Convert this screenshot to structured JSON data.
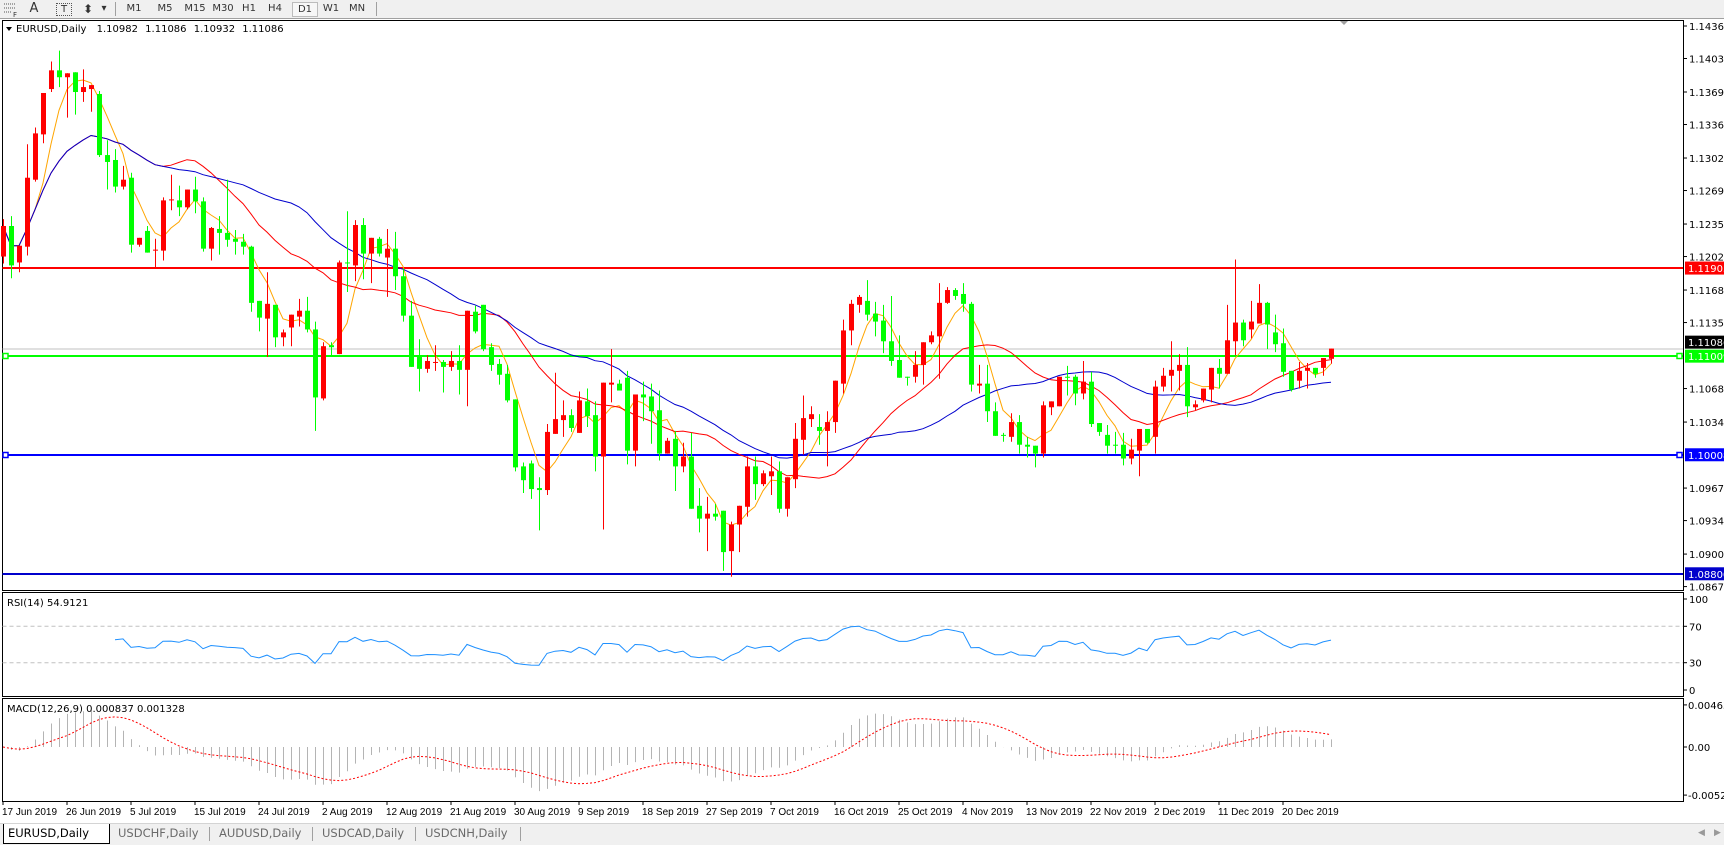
{
  "toolbar": {
    "tools": [
      {
        "name": "fibonacci-tool",
        "glyph": "F"
      },
      {
        "name": "text-tool",
        "glyph": "A"
      },
      {
        "name": "text-label-tool",
        "glyph": "T"
      },
      {
        "name": "arrows-tool",
        "glyph": "⬍"
      }
    ],
    "dropdown_glyph": "▾",
    "timeframes": [
      "M1",
      "M5",
      "M15",
      "M30",
      "H1",
      "H4",
      "D1",
      "W1",
      "MN"
    ],
    "active_timeframe": "D1"
  },
  "header": {
    "symbol": "EURUSD,Daily",
    "open": "1.10982",
    "high": "1.11086",
    "low": "1.10932",
    "close": "1.11086"
  },
  "colors": {
    "bull": "#ff0000",
    "bear": "#00ff00",
    "ma_fast": "#ffa500",
    "ma_mid": "#ff0000",
    "ma_slow": "#0000cd",
    "rsi": "#1e90ff",
    "macd_hist": "#b4b4b4",
    "macd_signal": "#ff0000",
    "bid_line": "#c0c0c0"
  },
  "chart_data": {
    "type": "candlestick",
    "symbol": "EURUSD",
    "timeframe": "Daily",
    "price_range": [
      1.08638,
      1.14421
    ],
    "price_axis_labels": [
      "1.14360",
      "1.14030",
      "1.13690",
      "1.13360",
      "1.13020",
      "1.12690",
      "1.12350",
      "1.12020",
      "1.11680",
      "1.11350",
      "1.10680",
      "1.10340",
      "1.09670",
      "1.09340",
      "1.09000",
      "1.08670"
    ],
    "date_labels": [
      "17 Jun 2019",
      "26 Jun 2019",
      "5 Jul 2019",
      "15 Jul 2019",
      "24 Jul 2019",
      "2 Aug 2019",
      "12 Aug 2019",
      "21 Aug 2019",
      "30 Aug 2019",
      "9 Sep 2019",
      "18 Sep 2019",
      "27 Sep 2019",
      "7 Oct 2019",
      "16 Oct 2019",
      "25 Oct 2019",
      "4 Nov 2019",
      "13 Nov 2019",
      "22 Nov 2019",
      "2 Dec 2019",
      "11 Dec 2019",
      "20 Dec 2019"
    ],
    "bid": {
      "price": 1.11086,
      "label": "1.11086"
    },
    "horizontal_lines": [
      {
        "price": 1.11903,
        "label": "1.11903",
        "color": "#ff0000",
        "handles": false
      },
      {
        "price": 1.11009,
        "label": "1.11009",
        "color": "#00ff00",
        "handles": true
      },
      {
        "price": 1.10008,
        "label": "1.10008",
        "color": "#0000ff",
        "handles": true
      },
      {
        "price": 1.088,
        "label": "1.08800",
        "color": "#0000cc",
        "handles": false
      }
    ],
    "ohlc": [
      [
        1.1202,
        1.124,
        1.1195,
        1.1233
      ],
      [
        1.1233,
        1.1243,
        1.118,
        1.1193
      ],
      [
        1.1196,
        1.1213,
        1.1186,
        1.1213
      ],
      [
        1.1212,
        1.1316,
        1.1203,
        1.1282
      ],
      [
        1.128,
        1.1333,
        1.1278,
        1.1327
      ],
      [
        1.1326,
        1.1368,
        1.1317,
        1.1368
      ],
      [
        1.1372,
        1.14,
        1.1369,
        1.1391
      ],
      [
        1.1391,
        1.1411,
        1.1374,
        1.1384
      ],
      [
        1.1384,
        1.1388,
        1.1343,
        1.1388
      ],
      [
        1.1389,
        1.1389,
        1.1346,
        1.1369
      ],
      [
        1.1369,
        1.1392,
        1.1359,
        1.1374
      ],
      [
        1.1372,
        1.1376,
        1.1349,
        1.1376
      ],
      [
        1.1367,
        1.137,
        1.1303,
        1.1305
      ],
      [
        1.1305,
        1.132,
        1.127,
        1.1298
      ],
      [
        1.13,
        1.1311,
        1.1267,
        1.1273
      ],
      [
        1.1273,
        1.1294,
        1.127,
        1.128
      ],
      [
        1.1282,
        1.1287,
        1.1206,
        1.1214
      ],
      [
        1.1214,
        1.1221,
        1.1212,
        1.1221
      ],
      [
        1.1228,
        1.1233,
        1.1206,
        1.1206
      ],
      [
        1.1208,
        1.122,
        1.1191,
        1.1209
      ],
      [
        1.1208,
        1.1262,
        1.1198,
        1.1259
      ],
      [
        1.1259,
        1.1285,
        1.1249,
        1.126
      ],
      [
        1.1259,
        1.1274,
        1.1243,
        1.1252
      ],
      [
        1.1252,
        1.127,
        1.125,
        1.127
      ],
      [
        1.127,
        1.1283,
        1.1246,
        1.1258
      ],
      [
        1.1258,
        1.1262,
        1.1207,
        1.121
      ],
      [
        1.121,
        1.1232,
        1.1198,
        1.1231
      ],
      [
        1.123,
        1.1243,
        1.1204,
        1.1226
      ],
      [
        1.1226,
        1.128,
        1.1212,
        1.1219
      ],
      [
        1.122,
        1.1229,
        1.1204,
        1.1217
      ],
      [
        1.1217,
        1.1225,
        1.1204,
        1.1212
      ],
      [
        1.1212,
        1.1213,
        1.1146,
        1.1155
      ],
      [
        1.1157,
        1.1157,
        1.1126,
        1.114
      ],
      [
        1.1139,
        1.1186,
        1.11,
        1.1154
      ],
      [
        1.1153,
        1.1153,
        1.111,
        1.112
      ],
      [
        1.112,
        1.1128,
        1.1111,
        1.1125
      ],
      [
        1.113,
        1.1143,
        1.1111,
        1.1143
      ],
      [
        1.1141,
        1.1159,
        1.1131,
        1.1147
      ],
      [
        1.1147,
        1.1161,
        1.1125,
        1.1128
      ],
      [
        1.1128,
        1.1136,
        1.1025,
        1.1059
      ],
      [
        1.1058,
        1.1115,
        1.1056,
        1.1111
      ],
      [
        1.1112,
        1.1115,
        1.1102,
        1.111
      ],
      [
        1.1103,
        1.1198,
        1.1103,
        1.1196
      ],
      [
        1.1196,
        1.1248,
        1.1166,
        1.1195
      ],
      [
        1.1193,
        1.1239,
        1.1177,
        1.1234
      ],
      [
        1.1234,
        1.1241,
        1.1179,
        1.1205
      ],
      [
        1.1205,
        1.1221,
        1.1175,
        1.1221
      ],
      [
        1.122,
        1.1222,
        1.1202,
        1.1205
      ],
      [
        1.1201,
        1.123,
        1.1161,
        1.121
      ],
      [
        1.121,
        1.1227,
        1.1168,
        1.1182
      ],
      [
        1.1182,
        1.119,
        1.1136,
        1.1142
      ],
      [
        1.1142,
        1.1157,
        1.109,
        1.109
      ],
      [
        1.11,
        1.1118,
        1.1065,
        1.1088
      ],
      [
        1.1088,
        1.1102,
        1.1084,
        1.1096
      ],
      [
        1.1094,
        1.1112,
        1.1086,
        1.1095
      ],
      [
        1.1095,
        1.1097,
        1.1064,
        1.109
      ],
      [
        1.109,
        1.1106,
        1.1086,
        1.1096
      ],
      [
        1.1096,
        1.1112,
        1.1062,
        1.1087
      ],
      [
        1.1087,
        1.1147,
        1.105,
        1.1147
      ],
      [
        1.1146,
        1.1152,
        1.1124,
        1.1126
      ],
      [
        1.1153,
        1.1153,
        1.1106,
        1.1108
      ],
      [
        1.111,
        1.1114,
        1.1086,
        1.1092
      ],
      [
        1.1093,
        1.1098,
        1.1072,
        1.1082
      ],
      [
        1.1083,
        1.1092,
        1.1054,
        1.1056
      ],
      [
        1.1057,
        1.1057,
        1.0984,
        1.0988
      ],
      [
        1.0989,
        1.0993,
        1.0962,
        1.0975
      ],
      [
        1.0992,
        1.0995,
        1.0956,
        1.0966
      ],
      [
        1.0967,
        1.0978,
        1.0924,
        1.0965
      ],
      [
        1.0965,
        1.1032,
        1.096,
        1.1024
      ],
      [
        1.1022,
        1.1084,
        1.1022,
        1.1037
      ],
      [
        1.1036,
        1.1056,
        1.1019,
        1.1041
      ],
      [
        1.1041,
        1.1047,
        1.1024,
        1.1028
      ],
      [
        1.1023,
        1.1065,
        1.1023,
        1.1056
      ],
      [
        1.1055,
        1.1068,
        1.1029,
        1.104
      ],
      [
        1.1041,
        1.1055,
        1.0984,
        1.0999
      ],
      [
        1.0999,
        1.1074,
        1.0925,
        1.1074
      ],
      [
        1.1072,
        1.1108,
        1.1054,
        1.1074
      ],
      [
        1.1073,
        1.1077,
        1.1066,
        1.1066
      ],
      [
        1.1079,
        1.1086,
        1.0991,
        1.1005
      ],
      [
        1.1005,
        1.1062,
        1.0989,
        1.1062
      ],
      [
        1.1062,
        1.1075,
        1.1035,
        1.1059
      ],
      [
        1.106,
        1.1073,
        1.1012,
        1.1045
      ],
      [
        1.1046,
        1.1066,
        1.0995,
        1.1002
      ],
      [
        1.1002,
        1.1018,
        1.1002,
        1.1015
      ],
      [
        1.1017,
        1.1025,
        1.0964,
        1.0989
      ],
      [
        1.0989,
        1.1013,
        1.0983,
        1.0999
      ],
      [
        1.0999,
        1.1023,
        1.0946,
        1.0946
      ],
      [
        1.0949,
        1.0967,
        1.0922,
        1.0936
      ],
      [
        1.0936,
        1.0958,
        1.0903,
        1.0941
      ],
      [
        1.0941,
        1.0951,
        1.0934,
        1.0938
      ],
      [
        1.0944,
        1.0944,
        1.0883,
        1.0902
      ],
      [
        1.0903,
        1.0933,
        1.0877,
        1.093
      ],
      [
        1.093,
        1.0949,
        1.0902,
        1.0949
      ],
      [
        1.0948,
        1.0999,
        1.0938,
        1.0989
      ],
      [
        1.0989,
        1.0999,
        1.0955,
        1.0971
      ],
      [
        1.0971,
        1.0985,
        1.0969,
        1.0982
      ],
      [
        1.0979,
        1.0999,
        1.096,
        1.0984
      ],
      [
        1.0984,
        1.0994,
        1.0942,
        1.0946
      ],
      [
        1.0946,
        1.0978,
        1.0938,
        1.0978
      ],
      [
        1.0976,
        1.1033,
        1.0967,
        1.1017
      ],
      [
        1.1016,
        1.1061,
        1.1001,
        1.1038
      ],
      [
        1.1037,
        1.105,
        1.1029,
        1.1042
      ],
      [
        1.1029,
        1.1042,
        1.1011,
        1.1025
      ],
      [
        1.1025,
        1.1045,
        1.0989,
        1.1034
      ],
      [
        1.1034,
        1.1076,
        1.1023,
        1.1076
      ],
      [
        1.1073,
        1.1138,
        1.1063,
        1.1127
      ],
      [
        1.1127,
        1.1158,
        1.1112,
        1.1154
      ],
      [
        1.1153,
        1.1163,
        1.1145,
        1.1161
      ],
      [
        1.1157,
        1.1178,
        1.1137,
        1.1143
      ],
      [
        1.1144,
        1.1156,
        1.1121,
        1.1136
      ],
      [
        1.1137,
        1.1153,
        1.1104,
        1.1116
      ],
      [
        1.1116,
        1.1162,
        1.1091,
        1.1096
      ],
      [
        1.1097,
        1.1122,
        1.1079,
        1.1079
      ],
      [
        1.108,
        1.108,
        1.1071,
        1.1079
      ],
      [
        1.108,
        1.1106,
        1.1074,
        1.1092
      ],
      [
        1.1092,
        1.1115,
        1.1072,
        1.1115
      ],
      [
        1.1115,
        1.1126,
        1.1113,
        1.1122
      ],
      [
        1.1121,
        1.1175,
        1.1078,
        1.1155
      ],
      [
        1.1155,
        1.1171,
        1.1154,
        1.1168
      ],
      [
        1.1168,
        1.117,
        1.1158,
        1.1162
      ],
      [
        1.1164,
        1.1175,
        1.1146,
        1.1154
      ],
      [
        1.1154,
        1.1156,
        1.1065,
        1.1072
      ],
      [
        1.1071,
        1.1092,
        1.1063,
        1.1073
      ],
      [
        1.1073,
        1.1092,
        1.1034,
        1.1045
      ],
      [
        1.1045,
        1.1054,
        1.102,
        1.102
      ],
      [
        1.1021,
        1.1023,
        1.1014,
        1.102
      ],
      [
        1.1019,
        1.1043,
        1.1014,
        1.1034
      ],
      [
        1.1034,
        1.1041,
        1.1002,
        1.1011
      ],
      [
        1.1011,
        1.1019,
        1.0998,
        1.1009
      ],
      [
        1.101,
        1.101,
        1.0988,
        1.1002
      ],
      [
        1.1002,
        1.1055,
        1.0998,
        1.1051
      ],
      [
        1.1049,
        1.1055,
        1.1041,
        1.1055
      ],
      [
        1.105,
        1.108,
        1.105,
        1.108
      ],
      [
        1.108,
        1.1091,
        1.1061,
        1.1079
      ],
      [
        1.108,
        1.1082,
        1.1051,
        1.1063
      ],
      [
        1.1063,
        1.1096,
        1.1057,
        1.1075
      ],
      [
        1.1075,
        1.1085,
        1.1029,
        1.1032
      ],
      [
        1.1033,
        1.1033,
        1.102,
        1.1024
      ],
      [
        1.1021,
        1.1031,
        1.1002,
        1.101
      ],
      [
        1.1011,
        1.1024,
        1.1002,
        1.101
      ],
      [
        1.1011,
        1.1023,
        1.099,
        1.0997
      ],
      [
        1.0997,
        1.1017,
        1.0991,
        1.1006
      ],
      [
        1.1005,
        1.1027,
        1.0979,
        1.1027
      ],
      [
        1.1027,
        1.1027,
        1.1012,
        1.1013
      ],
      [
        1.1019,
        1.1076,
        1.1002,
        1.107
      ],
      [
        1.107,
        1.1089,
        1.1065,
        1.1081
      ],
      [
        1.1081,
        1.1116,
        1.1065,
        1.1087
      ],
      [
        1.1086,
        1.1103,
        1.1066,
        1.1092
      ],
      [
        1.1092,
        1.111,
        1.1039,
        1.105
      ],
      [
        1.1049,
        1.1056,
        1.1046,
        1.1052
      ],
      [
        1.1056,
        1.1068,
        1.1054,
        1.1068
      ],
      [
        1.1067,
        1.1089,
        1.1054,
        1.1089
      ],
      [
        1.1089,
        1.1098,
        1.1068,
        1.1083
      ],
      [
        1.1083,
        1.1153,
        1.1083,
        1.1117
      ],
      [
        1.1116,
        1.1199,
        1.1102,
        1.1135
      ],
      [
        1.1135,
        1.1138,
        1.1111,
        1.1117
      ],
      [
        1.1128,
        1.1157,
        1.1119,
        1.1136
      ],
      [
        1.1134,
        1.1174,
        1.1134,
        1.1155
      ],
      [
        1.1155,
        1.1156,
        1.1108,
        1.1133
      ],
      [
        1.1125,
        1.1143,
        1.1105,
        1.1113
      ],
      [
        1.1114,
        1.1129,
        1.108,
        1.1085
      ],
      [
        1.1086,
        1.1086,
        1.1065,
        1.1067
      ],
      [
        1.1076,
        1.1095,
        1.1068,
        1.1086
      ],
      [
        1.1086,
        1.1094,
        1.1068,
        1.1089
      ],
      [
        1.1089,
        1.1089,
        1.1079,
        1.1083
      ],
      [
        1.1089,
        1.1099,
        1.1081,
        1.1099
      ],
      [
        1.10982,
        1.11086,
        1.10932,
        1.11086
      ]
    ],
    "rsi": {
      "label": "RSI(14) 54.9121",
      "levels": [
        70,
        30
      ],
      "axis_labels": [
        "100",
        "70",
        "30",
        "0"
      ],
      "range": [
        0,
        100
      ]
    },
    "macd": {
      "label": "MACD(12,26,9) 0.000837 0.001328",
      "axis_labels": [
        "0.00463",
        "0.00",
        "-0.00529"
      ],
      "range": [
        -0.00529,
        0.00463
      ]
    }
  },
  "tabs": [
    {
      "label": "EURUSD,Daily",
      "active": true
    },
    {
      "label": "USDCHF,Daily",
      "active": false
    },
    {
      "label": "AUDUSD,Daily",
      "active": false
    },
    {
      "label": "USDCAD,Daily",
      "active": false
    },
    {
      "label": "USDCNH,Daily",
      "active": false
    }
  ],
  "scroll": {
    "left_glyph": "◀",
    "right_glyph": "▶"
  }
}
